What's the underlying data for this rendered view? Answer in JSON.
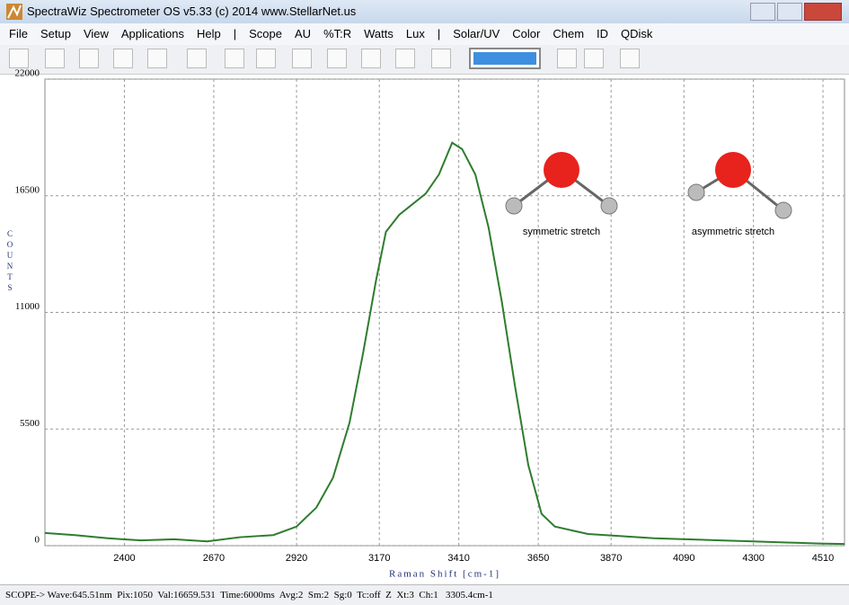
{
  "window": {
    "title": "SpectraWiz Spectrometer OS v5.33 (c) 2014    www.StellarNet.us"
  },
  "menu": [
    "File",
    "Setup",
    "View",
    "Applications",
    "Help",
    "|",
    "Scope",
    "AU",
    "%T:R",
    "Watts",
    "Lux",
    "|",
    "Solar/UV",
    "Color",
    "Chem",
    "ID",
    "QDisk"
  ],
  "chart_data": {
    "type": "line",
    "x_label": "Raman Shift [cm-1]",
    "y_label": "COUNTS",
    "annotations": [
      "symmetric stretch",
      "asymmetric stretch"
    ],
    "xlim": [
      2160,
      4575
    ],
    "ylim": [
      0,
      22000
    ],
    "xticks": [
      2400,
      2670,
      2920,
      3170,
      3410,
      3650,
      3870,
      4090,
      4300,
      4510
    ],
    "yticks": [
      0,
      5500,
      11000,
      16500,
      22000
    ],
    "grid": true,
    "color": "#2e7d2e",
    "x": [
      2160,
      2250,
      2350,
      2450,
      2550,
      2650,
      2750,
      2850,
      2920,
      2980,
      3030,
      3080,
      3120,
      3160,
      3190,
      3230,
      3270,
      3310,
      3350,
      3390,
      3420,
      3460,
      3500,
      3540,
      3580,
      3620,
      3660,
      3700,
      3800,
      3900,
      4000,
      4100,
      4200,
      4300,
      4400,
      4500,
      4575
    ],
    "values": [
      600,
      500,
      350,
      250,
      300,
      200,
      400,
      500,
      900,
      1800,
      3200,
      5800,
      9000,
      12500,
      14800,
      15600,
      16100,
      16600,
      17500,
      19000,
      18700,
      17500,
      15000,
      11500,
      7500,
      3800,
      1500,
      900,
      550,
      450,
      350,
      300,
      250,
      200,
      150,
      100,
      80
    ]
  },
  "status": "SCOPE-> Wave:645.51nm  Pix:1050  Val:16659.531  Time:6000ms  Avg:2  Sm:2  Sg:0  Tc:off  Z  Xt:3  Ch:1   3305.4cm-1"
}
